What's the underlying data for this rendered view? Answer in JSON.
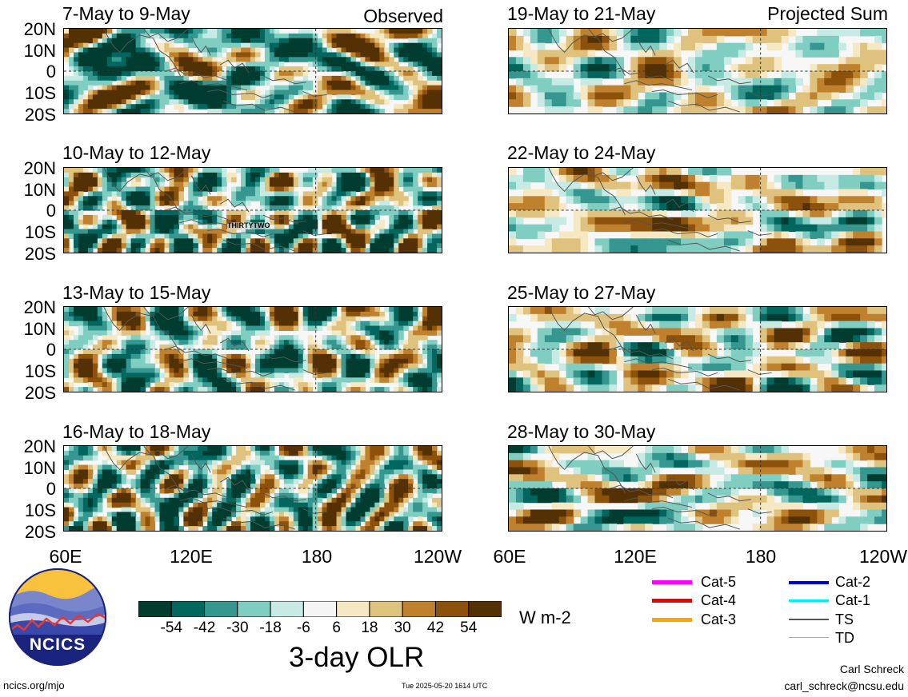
{
  "panels": [
    {
      "title": "7-May to 9-May",
      "tag": "Observed",
      "storm_label": ""
    },
    {
      "title": "19-May to 21-May",
      "tag": "Projected Sum",
      "storm_label": ""
    },
    {
      "title": "10-May to 12-May",
      "tag": "",
      "storm_label": "THIRTYTWO"
    },
    {
      "title": "22-May to 24-May",
      "tag": "",
      "storm_label": ""
    },
    {
      "title": "13-May to 15-May",
      "tag": "",
      "storm_label": ""
    },
    {
      "title": "25-May to 27-May",
      "tag": "",
      "storm_label": ""
    },
    {
      "title": "16-May to 18-May",
      "tag": "",
      "storm_label": ""
    },
    {
      "title": "28-May to 30-May",
      "tag": "",
      "storm_label": ""
    }
  ],
  "lat_ticks": [
    "20N",
    "10N",
    "0",
    "10S",
    "20S"
  ],
  "lon_ticks_left": [
    "60E",
    "120E",
    "180",
    "120W"
  ],
  "lon_ticks_right": [
    "60E",
    "120E",
    "180",
    "120W"
  ],
  "colorbar": {
    "title": "3-day OLR",
    "units": "W m-2",
    "tick_labels": [
      "-54",
      "-42",
      "-30",
      "-18",
      "-6",
      "6",
      "18",
      "30",
      "42",
      "54"
    ],
    "colors": [
      "#003c30",
      "#01665e",
      "#35978f",
      "#80cdc1",
      "#c7eae5",
      "#f5f5f5",
      "#f6e8c3",
      "#dfc27d",
      "#bf812d",
      "#8c510a",
      "#543005"
    ]
  },
  "legend": {
    "items": [
      {
        "label": "Cat-5",
        "color": "#ff00ff"
      },
      {
        "label": "Cat-2",
        "color": "#0000cc"
      },
      {
        "label": "Cat-4",
        "color": "#ee0000"
      },
      {
        "label": "Cat-1",
        "color": "#00eeee"
      },
      {
        "label": "Cat-3",
        "color": "#ffa500"
      },
      {
        "label": "TS",
        "color": "#555555"
      },
      {
        "label": "",
        "color": ""
      },
      {
        "label": "TD",
        "color": "#aaaaaa"
      }
    ]
  },
  "logo": {
    "text": "NCICS"
  },
  "footer": {
    "url": "ncics.org/mjo",
    "timestamp": "Tue 2025-05-20 1614 UTC",
    "author": "Carl Schreck",
    "email": "carl_schreck@ncsu.edu"
  }
}
